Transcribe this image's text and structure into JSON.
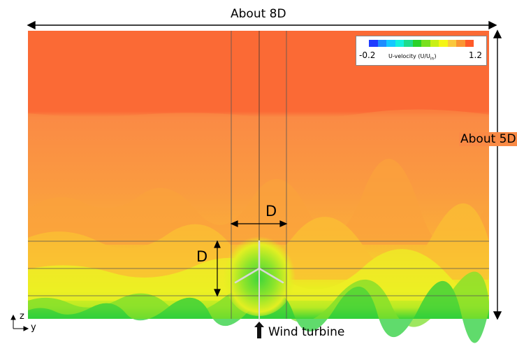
{
  "width_label": "About 8D",
  "height_label": "About 5D",
  "diameter_label_horizontal": "D",
  "diameter_label_vertical": "D",
  "turbine_label": "Wind turbine",
  "axis_z": "z",
  "axis_y": "y",
  "legend": {
    "title_main": "U-velocity (U/U",
    "title_sub": "in",
    "title_end": ")",
    "min": "-0.2",
    "max": "1.2",
    "colors": [
      "#1e3cff",
      "#1e8cff",
      "#14c8ff",
      "#14f0dc",
      "#1edc8c",
      "#28d228",
      "#78e01e",
      "#c8f014",
      "#f5f514",
      "#fac83c",
      "#fa9632",
      "#ff5a28"
    ]
  },
  "field_colors": {
    "top": "#fb6a35",
    "upper_mid": "#fa8a45",
    "lower_mid": "#fbab3a",
    "near_wall": "#e9f020",
    "wall": "#5fd930",
    "wake": "#a6e928"
  }
}
